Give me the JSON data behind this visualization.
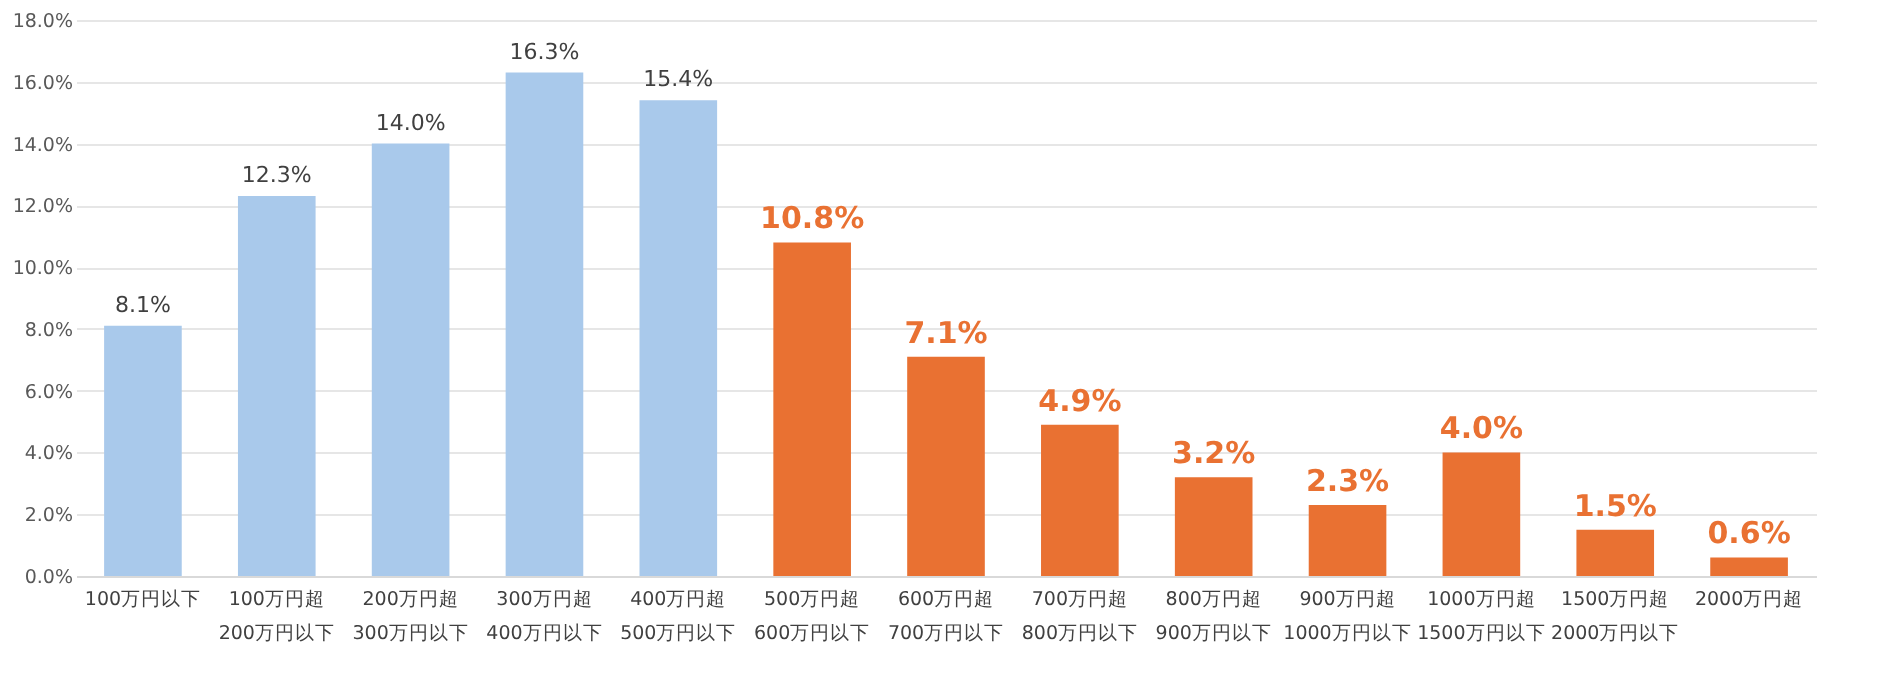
{
  "chart_data": {
    "type": "bar",
    "categories": [
      "100万円以下",
      "100万円超\n200万円以下",
      "200万円超\n300万円以下",
      "300万円超\n400万円以下",
      "400万円超\n500万円以下",
      "500万円超\n600万円以下",
      "600万円超\n700万円以下",
      "700万円超\n800万円以下",
      "800万円超\n900万円以下",
      "900万円超\n1000万円以下",
      "1000万円超\n1500万円以下",
      "1500万円超\n2000万円以下",
      "2000万円超"
    ],
    "values": [
      8.1,
      12.3,
      14.0,
      16.3,
      15.4,
      10.8,
      7.1,
      4.9,
      3.2,
      2.3,
      4.0,
      1.5,
      0.6
    ],
    "value_labels": [
      "8.1%",
      "12.3%",
      "14.0%",
      "16.3%",
      "15.4%",
      "10.8%",
      "7.1%",
      "4.9%",
      "3.2%",
      "2.3%",
      "4.0%",
      "1.5%",
      "0.6%"
    ],
    "colors": [
      "#a9c9eb",
      "#a9c9eb",
      "#a9c9eb",
      "#a9c9eb",
      "#a9c9eb",
      "#e97132",
      "#e97132",
      "#e97132",
      "#e97132",
      "#e97132",
      "#e97132",
      "#e97132",
      "#e97132"
    ],
    "ylim": [
      0,
      18
    ],
    "yticks": [
      {
        "value": 0,
        "label": "0.0%"
      },
      {
        "value": 2,
        "label": "2.0%"
      },
      {
        "value": 4,
        "label": "4.0%"
      },
      {
        "value": 6,
        "label": "6.0%"
      },
      {
        "value": 8,
        "label": "8.0%"
      },
      {
        "value": 10,
        "label": "10.0%"
      },
      {
        "value": 12,
        "label": "12.0%"
      },
      {
        "value": 14,
        "label": "14.0%"
      },
      {
        "value": 16,
        "label": "16.0%"
      },
      {
        "value": 18,
        "label": "18.0%"
      }
    ],
    "grid": "y"
  }
}
